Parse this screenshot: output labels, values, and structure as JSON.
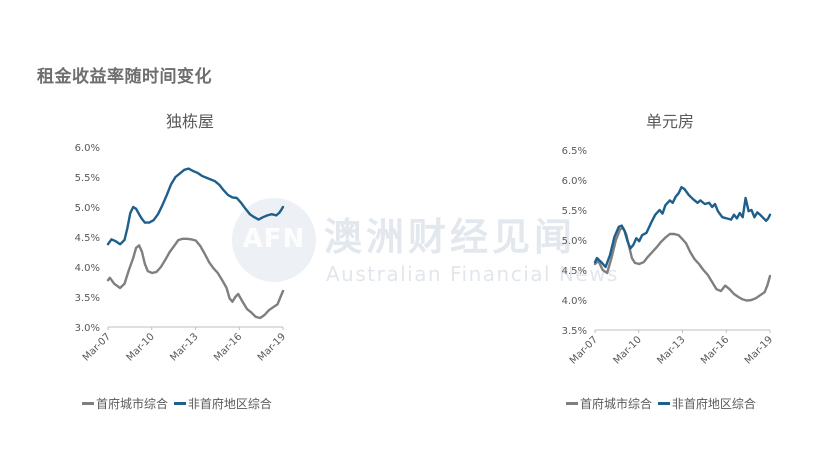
{
  "page_title": "租金收益率随时间变化",
  "watermark": {
    "logo": "AFN",
    "cn": "澳洲财经见闻",
    "en": "Australian Financial News"
  },
  "colors": {
    "capital": "#7f7f7f",
    "regional": "#1f5f8b",
    "axis": "#bfbfbf",
    "text": "#595959"
  },
  "legend": {
    "capital": "首府城市综合",
    "regional": "非首府地区综合"
  },
  "chart_data": [
    {
      "type": "line",
      "title": "独栋屋",
      "xlabel": "",
      "ylabel": "",
      "x_ticks": [
        "Mar-07",
        "Mar-10",
        "Mar-13",
        "Mar-16",
        "Mar-19"
      ],
      "y_ticks": [
        "3.0%",
        "3.5%",
        "4.0%",
        "4.5%",
        "5.0%",
        "5.5%",
        "6.0%"
      ],
      "ylim": [
        3.0,
        6.0
      ],
      "xlim": [
        2007.17,
        2019.17
      ],
      "grid": false,
      "legend_position": "bottom",
      "series": [
        {
          "name": "首府城市综合",
          "color": "#7f7f7f",
          "points": [
            [
              2007.17,
              3.78
            ],
            [
              2007.3,
              3.82
            ],
            [
              2007.6,
              3.72
            ],
            [
              2008.0,
              3.65
            ],
            [
              2008.3,
              3.72
            ],
            [
              2008.6,
              3.95
            ],
            [
              2008.9,
              4.15
            ],
            [
              2009.1,
              4.32
            ],
            [
              2009.3,
              4.36
            ],
            [
              2009.5,
              4.25
            ],
            [
              2009.7,
              4.05
            ],
            [
              2009.9,
              3.93
            ],
            [
              2010.2,
              3.9
            ],
            [
              2010.5,
              3.92
            ],
            [
              2010.8,
              4.0
            ],
            [
              2011.1,
              4.12
            ],
            [
              2011.4,
              4.25
            ],
            [
              2011.7,
              4.35
            ],
            [
              2012.0,
              4.45
            ],
            [
              2012.3,
              4.47
            ],
            [
              2012.6,
              4.47
            ],
            [
              2012.9,
              4.46
            ],
            [
              2013.2,
              4.44
            ],
            [
              2013.5,
              4.35
            ],
            [
              2013.8,
              4.22
            ],
            [
              2014.1,
              4.08
            ],
            [
              2014.4,
              3.98
            ],
            [
              2014.7,
              3.9
            ],
            [
              2015.0,
              3.78
            ],
            [
              2015.3,
              3.65
            ],
            [
              2015.5,
              3.48
            ],
            [
              2015.7,
              3.42
            ],
            [
              2015.9,
              3.5
            ],
            [
              2016.1,
              3.55
            ],
            [
              2016.4,
              3.42
            ],
            [
              2016.7,
              3.3
            ],
            [
              2017.0,
              3.24
            ],
            [
              2017.3,
              3.17
            ],
            [
              2017.6,
              3.15
            ],
            [
              2017.9,
              3.2
            ],
            [
              2018.2,
              3.28
            ],
            [
              2018.5,
              3.33
            ],
            [
              2018.8,
              3.38
            ],
            [
              2019.0,
              3.5
            ],
            [
              2019.17,
              3.6
            ]
          ]
        },
        {
          "name": "非首府地区综合",
          "color": "#1f5f8b",
          "points": [
            [
              2007.17,
              4.38
            ],
            [
              2007.4,
              4.46
            ],
            [
              2007.7,
              4.43
            ],
            [
              2008.0,
              4.38
            ],
            [
              2008.3,
              4.45
            ],
            [
              2008.5,
              4.65
            ],
            [
              2008.7,
              4.9
            ],
            [
              2008.9,
              5.0
            ],
            [
              2009.1,
              4.97
            ],
            [
              2009.3,
              4.88
            ],
            [
              2009.5,
              4.8
            ],
            [
              2009.7,
              4.74
            ],
            [
              2010.0,
              4.74
            ],
            [
              2010.3,
              4.78
            ],
            [
              2010.6,
              4.88
            ],
            [
              2010.9,
              5.03
            ],
            [
              2011.2,
              5.2
            ],
            [
              2011.5,
              5.38
            ],
            [
              2011.8,
              5.5
            ],
            [
              2012.1,
              5.56
            ],
            [
              2012.4,
              5.62
            ],
            [
              2012.7,
              5.64
            ],
            [
              2013.0,
              5.6
            ],
            [
              2013.3,
              5.57
            ],
            [
              2013.6,
              5.52
            ],
            [
              2013.9,
              5.49
            ],
            [
              2014.2,
              5.46
            ],
            [
              2014.5,
              5.43
            ],
            [
              2014.8,
              5.37
            ],
            [
              2015.1,
              5.28
            ],
            [
              2015.4,
              5.2
            ],
            [
              2015.7,
              5.16
            ],
            [
              2016.0,
              5.15
            ],
            [
              2016.3,
              5.07
            ],
            [
              2016.6,
              4.97
            ],
            [
              2016.9,
              4.88
            ],
            [
              2017.2,
              4.83
            ],
            [
              2017.5,
              4.79
            ],
            [
              2017.8,
              4.83
            ],
            [
              2018.1,
              4.86
            ],
            [
              2018.4,
              4.88
            ],
            [
              2018.7,
              4.86
            ],
            [
              2018.9,
              4.9
            ],
            [
              2019.05,
              4.95
            ],
            [
              2019.17,
              5.0
            ]
          ]
        }
      ]
    },
    {
      "type": "line",
      "title": "单元房",
      "xlabel": "",
      "ylabel": "",
      "x_ticks": [
        "Mar-07",
        "Mar-10",
        "Mar-13",
        "Mar-16",
        "Mar-19"
      ],
      "y_ticks": [
        "3.5%",
        "4.0%",
        "4.5%",
        "5.0%",
        "5.5%",
        "6.0%",
        "6.5%"
      ],
      "ylim": [
        3.5,
        6.5
      ],
      "xlim": [
        2007.17,
        2019.17
      ],
      "grid": false,
      "legend_position": "bottom",
      "series": [
        {
          "name": "首府城市综合",
          "color": "#7f7f7f",
          "points": [
            [
              2007.17,
              4.6
            ],
            [
              2007.4,
              4.65
            ],
            [
              2007.7,
              4.5
            ],
            [
              2008.0,
              4.45
            ],
            [
              2008.3,
              4.7
            ],
            [
              2008.6,
              5.0
            ],
            [
              2008.9,
              5.18
            ],
            [
              2009.1,
              5.2
            ],
            [
              2009.3,
              5.1
            ],
            [
              2009.5,
              4.9
            ],
            [
              2009.7,
              4.7
            ],
            [
              2009.9,
              4.62
            ],
            [
              2010.2,
              4.6
            ],
            [
              2010.5,
              4.63
            ],
            [
              2010.8,
              4.72
            ],
            [
              2011.1,
              4.8
            ],
            [
              2011.4,
              4.88
            ],
            [
              2011.7,
              4.97
            ],
            [
              2012.0,
              5.04
            ],
            [
              2012.3,
              5.1
            ],
            [
              2012.6,
              5.1
            ],
            [
              2012.9,
              5.08
            ],
            [
              2013.1,
              5.03
            ],
            [
              2013.4,
              4.95
            ],
            [
              2013.7,
              4.8
            ],
            [
              2014.0,
              4.68
            ],
            [
              2014.3,
              4.6
            ],
            [
              2014.6,
              4.5
            ],
            [
              2014.9,
              4.42
            ],
            [
              2015.2,
              4.3
            ],
            [
              2015.5,
              4.18
            ],
            [
              2015.8,
              4.15
            ],
            [
              2016.1,
              4.24
            ],
            [
              2016.4,
              4.18
            ],
            [
              2016.7,
              4.1
            ],
            [
              2017.0,
              4.05
            ],
            [
              2017.3,
              4.01
            ],
            [
              2017.6,
              3.99
            ],
            [
              2017.9,
              4.0
            ],
            [
              2018.2,
              4.03
            ],
            [
              2018.5,
              4.08
            ],
            [
              2018.8,
              4.13
            ],
            [
              2019.0,
              4.25
            ],
            [
              2019.17,
              4.4
            ]
          ]
        },
        {
          "name": "非首府地区综合",
          "color": "#1f5f8b",
          "points": [
            [
              2007.17,
              4.63
            ],
            [
              2007.3,
              4.7
            ],
            [
              2007.6,
              4.63
            ],
            [
              2007.9,
              4.55
            ],
            [
              2008.2,
              4.75
            ],
            [
              2008.5,
              5.05
            ],
            [
              2008.8,
              5.22
            ],
            [
              2009.0,
              5.24
            ],
            [
              2009.2,
              5.15
            ],
            [
              2009.4,
              4.98
            ],
            [
              2009.6,
              4.86
            ],
            [
              2009.8,
              4.92
            ],
            [
              2010.0,
              5.03
            ],
            [
              2010.2,
              4.98
            ],
            [
              2010.4,
              5.08
            ],
            [
              2010.7,
              5.12
            ],
            [
              2011.0,
              5.28
            ],
            [
              2011.3,
              5.42
            ],
            [
              2011.6,
              5.5
            ],
            [
              2011.8,
              5.44
            ],
            [
              2012.0,
              5.58
            ],
            [
              2012.3,
              5.66
            ],
            [
              2012.5,
              5.62
            ],
            [
              2012.7,
              5.72
            ],
            [
              2012.9,
              5.78
            ],
            [
              2013.1,
              5.88
            ],
            [
              2013.3,
              5.85
            ],
            [
              2013.6,
              5.75
            ],
            [
              2013.9,
              5.68
            ],
            [
              2014.2,
              5.62
            ],
            [
              2014.4,
              5.66
            ],
            [
              2014.7,
              5.6
            ],
            [
              2015.0,
              5.62
            ],
            [
              2015.2,
              5.55
            ],
            [
              2015.4,
              5.6
            ],
            [
              2015.6,
              5.48
            ],
            [
              2015.9,
              5.38
            ],
            [
              2016.2,
              5.36
            ],
            [
              2016.5,
              5.34
            ],
            [
              2016.7,
              5.42
            ],
            [
              2016.9,
              5.36
            ],
            [
              2017.1,
              5.45
            ],
            [
              2017.3,
              5.38
            ],
            [
              2017.5,
              5.7
            ],
            [
              2017.7,
              5.48
            ],
            [
              2017.9,
              5.5
            ],
            [
              2018.1,
              5.38
            ],
            [
              2018.3,
              5.46
            ],
            [
              2018.5,
              5.42
            ],
            [
              2018.7,
              5.37
            ],
            [
              2018.9,
              5.32
            ],
            [
              2019.05,
              5.36
            ],
            [
              2019.17,
              5.42
            ]
          ]
        }
      ]
    }
  ]
}
